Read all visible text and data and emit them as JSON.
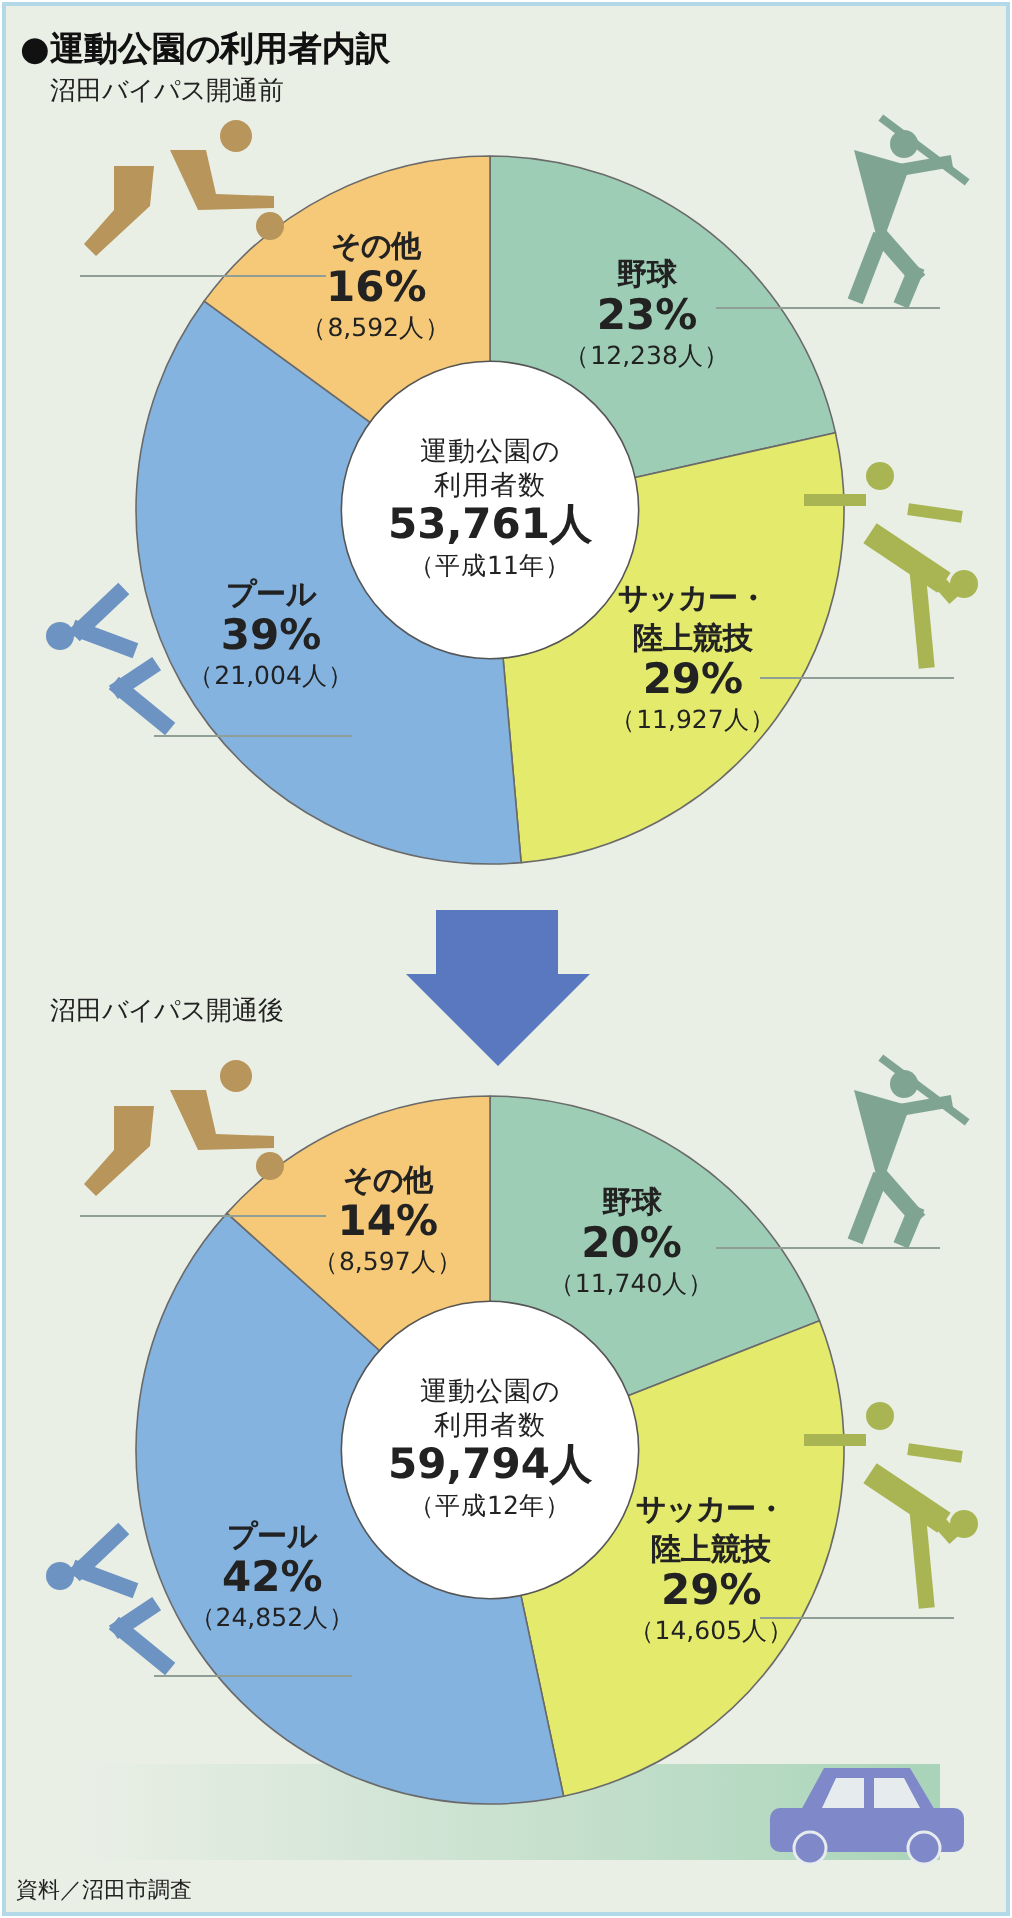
{
  "chart_data": [
    {
      "type": "donut",
      "title": "●運動公園の利用者内訳",
      "subtitle": "沼田バイパス開通前",
      "categories": [
        "野球",
        "サッカー・陸上競技",
        "プール",
        "その他"
      ],
      "values": [
        23,
        29,
        39,
        16
      ],
      "value_labels": [
        "23%\n（12,238人）",
        "29%\n（11,927人）",
        "39%\n（21,004人）",
        "16%\n（8,592人）"
      ],
      "colors": [
        "#9ecdb6",
        "#e3ea6c",
        "#84b3e0",
        "#f5c977"
      ],
      "annotations": [
        "運動公園の利用者数",
        "53,761人",
        "（平成11年）"
      ]
    },
    {
      "type": "donut",
      "subtitle": "沼田バイパス開通後",
      "categories": [
        "野球",
        "サッカー・陸上競技",
        "プール",
        "その他"
      ],
      "values": [
        20,
        29,
        42,
        14
      ],
      "value_labels": [
        "20%\n（11,740人）",
        "29%\n（14,605人）",
        "42%\n（24,852人）",
        "14%\n（8,597人）"
      ],
      "colors": [
        "#9ecdb6",
        "#e3ea6c",
        "#84b3e0",
        "#f5c977"
      ],
      "annotations": [
        "運動公園の利用者数",
        "59,794人",
        "（平成12年）",
        "資料／沼田市調査"
      ]
    }
  ]
}
